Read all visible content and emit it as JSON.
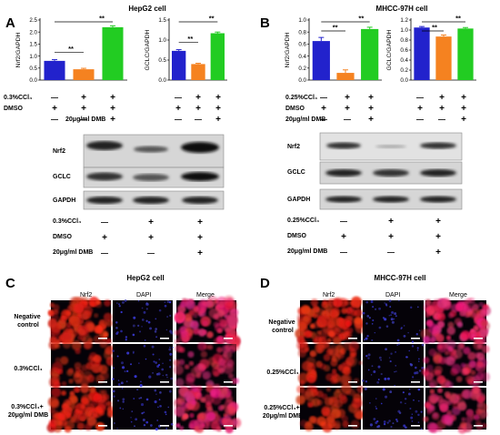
{
  "panels": {
    "A": {
      "letter": "A",
      "title": "HepG2 cell"
    },
    "B": {
      "letter": "B",
      "title": "MHCC-97H cell"
    },
    "C": {
      "letter": "C",
      "title": "HepG2 cell"
    },
    "D": {
      "letter": "D",
      "title": "MHCC-97H cell"
    }
  },
  "colors": {
    "blue": "#2222cc",
    "orange": "#f58220",
    "green": "#22cc22"
  },
  "chart_data": [
    {
      "id": "A-nrf2",
      "type": "bar",
      "ylabel": "Nrf2/GAPDH",
      "yticks": [
        "0.0",
        "0.5",
        "1.0",
        "1.5",
        "2.0",
        "2.5"
      ],
      "ylim": [
        0,
        2.5
      ],
      "values": [
        0.8,
        0.45,
        2.2
      ],
      "errors": [
        0.05,
        0.04,
        0.06
      ],
      "sig": [
        "**",
        "**"
      ]
    },
    {
      "id": "A-gclc",
      "type": "bar",
      "ylabel": "GCLC/GAPDH",
      "yticks": [
        "0.0",
        "0.5",
        "1.0",
        "1.5"
      ],
      "ylim": [
        0,
        1.5
      ],
      "values": [
        0.73,
        0.4,
        1.17
      ],
      "errors": [
        0.03,
        0.02,
        0.03
      ],
      "sig": [
        "**",
        "**"
      ]
    },
    {
      "id": "B-nrf2",
      "type": "bar",
      "ylabel": "Nrf2/GAPDH",
      "yticks": [
        "0.0",
        "0.2",
        "0.4",
        "0.6",
        "0.8",
        "1.0"
      ],
      "ylim": [
        0,
        1.0
      ],
      "values": [
        0.65,
        0.12,
        0.85
      ],
      "errors": [
        0.06,
        0.05,
        0.03
      ],
      "sig": [
        "**",
        "**"
      ]
    },
    {
      "id": "B-gclc",
      "type": "bar",
      "ylabel": "GCLC/GAPDH",
      "yticks": [
        "0.0",
        "0.2",
        "0.4",
        "0.6",
        "0.8",
        "1.0",
        "1.2"
      ],
      "ylim": [
        0,
        1.2
      ],
      "values": [
        1.05,
        0.87,
        1.03
      ],
      "errors": [
        0.02,
        0.03,
        0.02
      ],
      "sig": [
        "**",
        "**"
      ]
    }
  ],
  "treat": {
    "A": {
      "row1": "0.3%CCl₄",
      "row2": "DMSO",
      "row3": "20μg/ml DMB"
    },
    "B": {
      "row1": "0.25%CCl₄",
      "row2": "DMSO",
      "row3": "20μg/ml DMB"
    }
  },
  "signs": {
    "minus": "—",
    "plus": "+"
  },
  "blot": {
    "nrf2": "Nrf2",
    "gclc": "GCLC",
    "gapdh": "GAPDH"
  },
  "if_cols": {
    "nrf2": "Nrf2",
    "dapi": "DAPI",
    "merge": "Merge"
  },
  "if_rows": {
    "C": {
      "r1a": "Negative",
      "r1b": "control",
      "r2": "0.3%CCl₄",
      "r3a": "0.3%CCl₄+",
      "r3b": "20μg/ml DMB"
    },
    "D": {
      "r1a": "Negative",
      "r1b": "control",
      "r2": "0.25%CCl₄",
      "r3a": "0.25%CCl₄+",
      "r3b": "20μg/ml DMB"
    }
  }
}
